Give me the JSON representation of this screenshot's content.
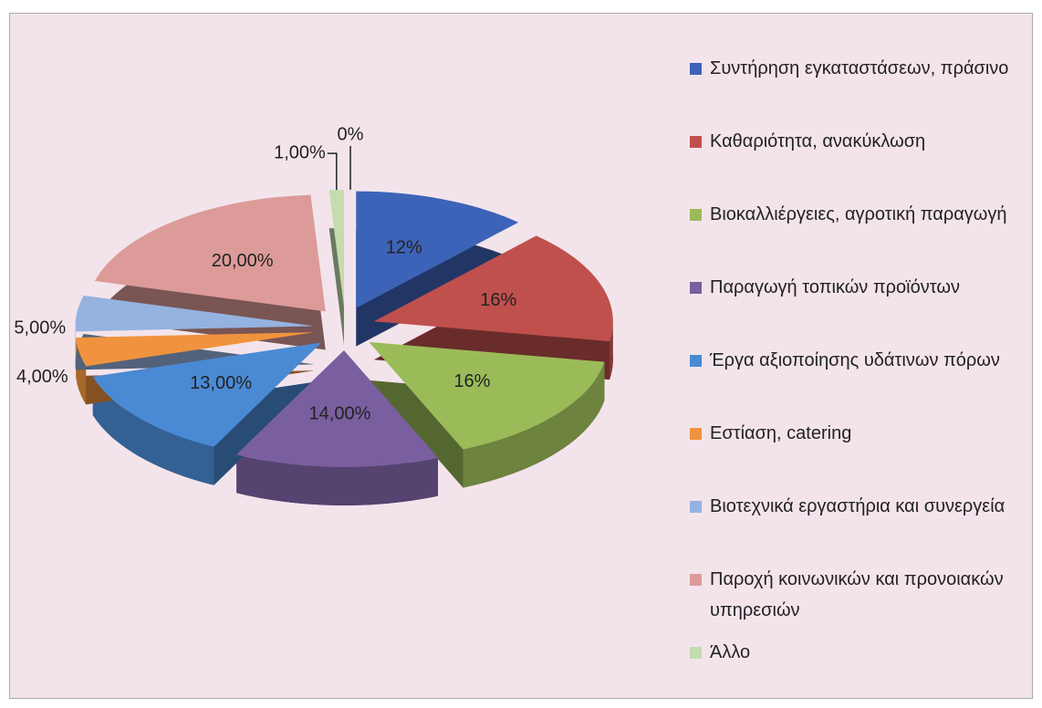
{
  "chart_data": {
    "type": "pie3d",
    "categories": [
      "Συντήρηση εγκαταστάσεων, πράσινο",
      "Καθαριότητα, ανακύκλωση",
      "Βιοκαλλιέργειες, αγροτική παραγωγή",
      "Παραγωγή τοπικών προϊόντων",
      "Έργα αξιοποίησης υδάτινων πόρων",
      "Εστίαση, catering",
      "Βιοτεχνικά εργαστήρια και συνεργεία",
      "Παροχή κοινωνικών και προνοιακών υπηρεσιών",
      "Άλλο",
      null
    ],
    "values": [
      12,
      16,
      16,
      14,
      13,
      4,
      5,
      20,
      1,
      0
    ],
    "value_labels": [
      "12%",
      "16%",
      "16%",
      "14,00%",
      "13,00%",
      "4,00%",
      "5,00%",
      "20,00%",
      "1,00%",
      "0%"
    ],
    "colors": [
      "#3d63b8",
      "#c0504d",
      "#9bbb59",
      "#7a5fa0",
      "#4a8ad4",
      "#f0933e",
      "#95b3e0",
      "#dc9b98",
      "#c5dcae",
      "#999999"
    ],
    "legend": "right"
  }
}
